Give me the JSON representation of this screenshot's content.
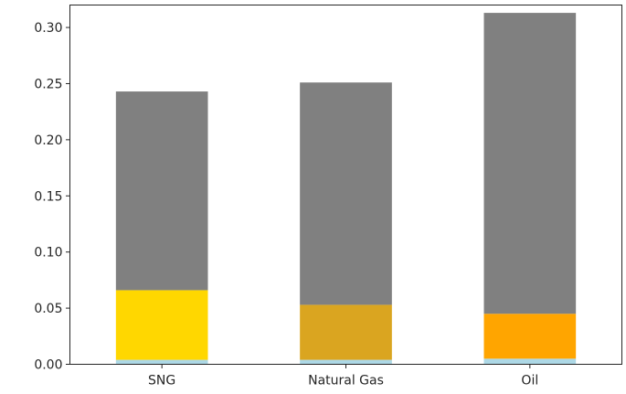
{
  "chart_data": {
    "type": "bar",
    "stacked": true,
    "categories": [
      "SNG",
      "Natural Gas",
      "Oil"
    ],
    "segments": [
      {
        "values": [
          0.004,
          0.004,
          0.005
        ],
        "colors": [
          "#add8e6",
          "#add8e6",
          "#add8e6"
        ]
      },
      {
        "values": [
          0.062,
          0.049,
          0.04
        ],
        "colors": [
          "#ffd700",
          "#daa520",
          "#ffa500"
        ]
      },
      {
        "values": [
          0.177,
          0.198,
          0.268
        ],
        "colors": [
          "#808080",
          "#808080",
          "#808080"
        ]
      }
    ],
    "ylim": [
      0,
      0.32
    ],
    "yticks": [
      {
        "value": 0.0,
        "label": "0.00"
      },
      {
        "value": 0.05,
        "label": "0.05"
      },
      {
        "value": 0.1,
        "label": "0.10"
      },
      {
        "value": 0.15,
        "label": "0.15"
      },
      {
        "value": 0.2,
        "label": "0.20"
      },
      {
        "value": 0.25,
        "label": "0.25"
      },
      {
        "value": 0.3,
        "label": "0.30"
      }
    ],
    "xlabel": "",
    "ylabel": "",
    "title": "",
    "grid": false,
    "legend": false
  }
}
